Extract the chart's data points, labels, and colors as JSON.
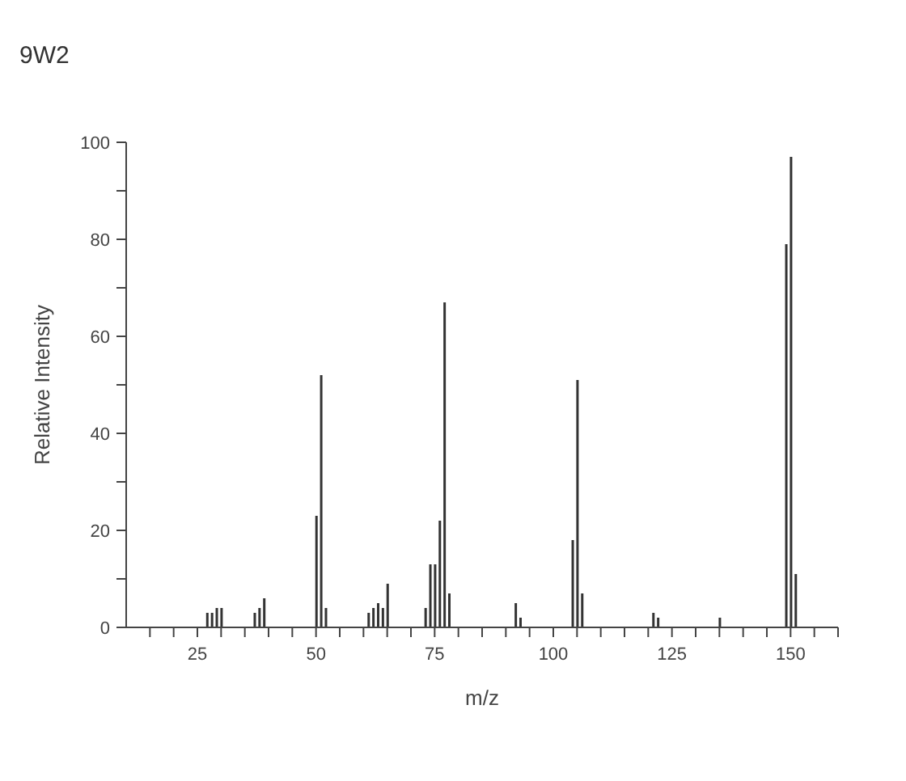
{
  "chart_data": {
    "type": "bar",
    "title": "9W2",
    "xlabel": "m/z",
    "ylabel": "Relative Intensity",
    "x": [
      27,
      28,
      29,
      30,
      37,
      38,
      39,
      50,
      51,
      52,
      61,
      62,
      63,
      64,
      65,
      73,
      74,
      75,
      76,
      77,
      78,
      92,
      93,
      104,
      105,
      106,
      121,
      122,
      135,
      149,
      150,
      151
    ],
    "values": [
      3,
      3,
      4,
      4,
      3,
      4,
      6,
      23,
      52,
      4,
      3,
      4,
      5,
      4,
      9,
      4,
      13,
      13,
      22,
      67,
      7,
      5,
      2,
      18,
      51,
      7,
      3,
      2,
      2,
      79,
      97,
      11
    ],
    "color": "#333333",
    "xlim": [
      10,
      160
    ],
    "xticks": [
      {
        "value": 15,
        "label": null
      },
      {
        "value": 20,
        "label": null
      },
      25,
      {
        "value": 30,
        "label": null
      },
      {
        "value": 35,
        "label": null
      },
      {
        "value": 40,
        "label": null
      },
      {
        "value": 45,
        "label": null
      },
      50,
      {
        "value": 55,
        "label": null
      },
      {
        "value": 60,
        "label": null
      },
      {
        "value": 65,
        "label": null
      },
      {
        "value": 70,
        "label": null
      },
      75,
      {
        "value": 80,
        "label": null
      },
      {
        "value": 85,
        "label": null
      },
      {
        "value": 90,
        "label": null
      },
      {
        "value": 95,
        "label": null
      },
      100,
      {
        "value": 105,
        "label": null
      },
      {
        "value": 110,
        "label": null
      },
      {
        "value": 115,
        "label": null
      },
      {
        "value": 120,
        "label": null
      },
      125,
      {
        "value": 130,
        "label": null
      },
      {
        "value": 135,
        "label": null
      },
      {
        "value": 140,
        "label": null
      },
      {
        "value": 145,
        "label": null
      },
      150,
      {
        "value": 155,
        "label": null
      },
      {
        "value": 160,
        "label": null
      }
    ],
    "ylim": [
      0,
      100
    ],
    "yticks": [
      0,
      {
        "value": 10,
        "label": null
      },
      20,
      {
        "value": 30,
        "label": null
      },
      40,
      {
        "value": 50,
        "label": null
      },
      60,
      {
        "value": 70,
        "label": null
      },
      80,
      {
        "value": 90,
        "label": null
      },
      100
    ],
    "grid": false
  }
}
